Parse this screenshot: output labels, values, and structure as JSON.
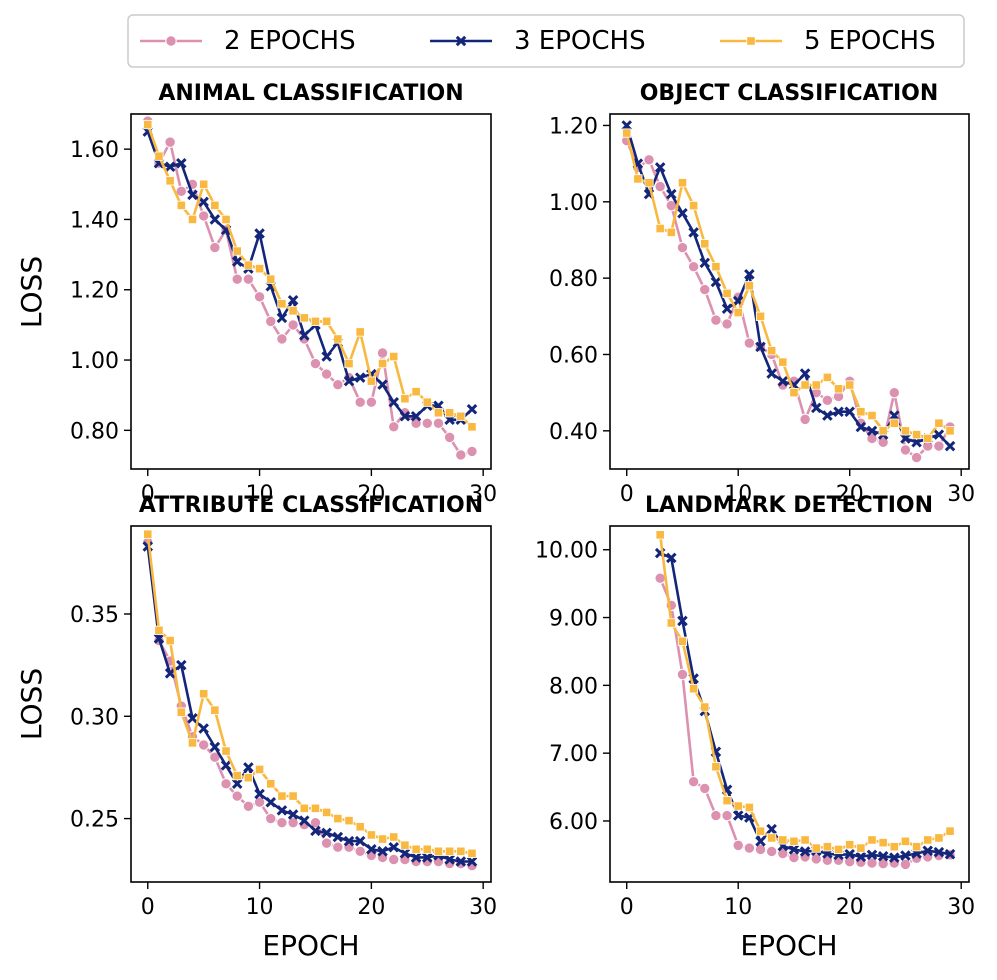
{
  "legend": {
    "entries": [
      {
        "label": "2 EPOCHS",
        "color": "#dc91b0",
        "marker": "circle"
      },
      {
        "label": "3 EPOCHS",
        "color": "#13267a",
        "marker": "x"
      },
      {
        "label": "5 EPOCHS",
        "color": "#f9b941",
        "marker": "square"
      }
    ]
  },
  "shared": {
    "xlabel": "EPOCH",
    "ylabel": "LOSS",
    "x_ticks": [
      0,
      10,
      20,
      30
    ],
    "xlim": [
      -1.5,
      30.7
    ]
  },
  "chart_data": [
    {
      "type": "line",
      "title": "ANIMAL CLASSIFICATION",
      "ylim": [
        0.69,
        1.7
      ],
      "y_ticks": [
        0.8,
        1.0,
        1.2,
        1.4,
        1.6
      ],
      "y_tick_labels": [
        "0.80",
        "1.00",
        "1.20",
        "1.40",
        "1.60"
      ],
      "series": [
        {
          "name": "2 EPOCHS",
          "x": [
            0,
            1,
            2,
            3,
            4,
            5,
            6,
            7,
            8,
            9,
            10,
            11,
            12,
            13,
            14,
            15,
            16,
            17,
            18,
            19,
            20,
            21,
            22,
            23,
            24,
            25,
            26,
            27,
            28,
            29
          ],
          "values": [
            1.68,
            1.56,
            1.62,
            1.48,
            1.5,
            1.41,
            1.32,
            1.37,
            1.23,
            1.23,
            1.18,
            1.11,
            1.06,
            1.1,
            1.06,
            0.99,
            0.96,
            0.93,
            0.95,
            0.88,
            0.88,
            1.02,
            0.81,
            0.85,
            0.82,
            0.82,
            0.82,
            0.78,
            0.73,
            0.74
          ]
        },
        {
          "name": "3 EPOCHS",
          "x": [
            0,
            1,
            2,
            3,
            4,
            5,
            6,
            7,
            8,
            9,
            10,
            11,
            12,
            13,
            14,
            15,
            16,
            17,
            18,
            19,
            20,
            21,
            22,
            23,
            24,
            25,
            26,
            27,
            28,
            29
          ],
          "values": [
            1.65,
            1.56,
            1.55,
            1.56,
            1.47,
            1.45,
            1.4,
            1.37,
            1.28,
            1.26,
            1.36,
            1.21,
            1.12,
            1.17,
            1.07,
            1.1,
            1.01,
            1.05,
            0.94,
            0.95,
            0.96,
            0.93,
            0.88,
            0.84,
            0.84,
            0.87,
            0.87,
            0.83,
            0.83,
            0.86
          ]
        },
        {
          "name": "5 EPOCHS",
          "x": [
            0,
            1,
            2,
            3,
            4,
            5,
            6,
            7,
            8,
            9,
            10,
            11,
            12,
            13,
            14,
            15,
            16,
            17,
            18,
            19,
            20,
            21,
            22,
            23,
            24,
            25,
            26,
            27,
            28,
            29
          ],
          "values": [
            1.67,
            1.58,
            1.51,
            1.44,
            1.4,
            1.5,
            1.44,
            1.4,
            1.31,
            1.27,
            1.26,
            1.23,
            1.16,
            1.14,
            1.12,
            1.11,
            1.11,
            1.06,
            0.99,
            1.08,
            0.94,
            0.99,
            1.01,
            0.89,
            0.91,
            0.88,
            0.85,
            0.85,
            0.84,
            0.81
          ]
        }
      ]
    },
    {
      "type": "line",
      "title": "OBJECT CLASSIFICATION",
      "ylim": [
        0.3,
        1.23
      ],
      "y_ticks": [
        0.4,
        0.6,
        0.8,
        1.0,
        1.2
      ],
      "y_tick_labels": [
        "0.40",
        "0.60",
        "0.80",
        "1.00",
        "1.20"
      ],
      "series": [
        {
          "name": "2 EPOCHS",
          "x": [
            0,
            1,
            2,
            3,
            4,
            5,
            6,
            7,
            8,
            9,
            10,
            11,
            12,
            13,
            14,
            15,
            16,
            17,
            18,
            19,
            20,
            21,
            22,
            23,
            24,
            25,
            26,
            27,
            28,
            29
          ],
          "values": [
            1.16,
            1.09,
            1.11,
            1.04,
            0.99,
            0.88,
            0.83,
            0.77,
            0.69,
            0.68,
            0.75,
            0.63,
            0.62,
            0.6,
            0.52,
            0.53,
            0.43,
            0.5,
            0.48,
            0.49,
            0.53,
            0.42,
            0.38,
            0.37,
            0.5,
            0.35,
            0.33,
            0.36,
            0.36,
            0.41
          ]
        },
        {
          "name": "3 EPOCHS",
          "x": [
            0,
            1,
            2,
            3,
            4,
            5,
            6,
            7,
            8,
            9,
            10,
            11,
            12,
            13,
            14,
            15,
            16,
            17,
            18,
            19,
            20,
            21,
            22,
            23,
            24,
            25,
            26,
            27,
            28,
            29
          ],
          "values": [
            1.2,
            1.1,
            1.02,
            1.09,
            1.02,
            0.97,
            0.92,
            0.84,
            0.79,
            0.72,
            0.74,
            0.81,
            0.62,
            0.55,
            0.53,
            0.52,
            0.55,
            0.46,
            0.44,
            0.45,
            0.45,
            0.41,
            0.4,
            0.39,
            0.44,
            0.38,
            0.37,
            0.38,
            0.39,
            0.36
          ]
        },
        {
          "name": "5 EPOCHS",
          "x": [
            0,
            1,
            2,
            3,
            4,
            5,
            6,
            7,
            8,
            9,
            10,
            11,
            12,
            13,
            14,
            15,
            16,
            17,
            18,
            19,
            20,
            21,
            22,
            23,
            24,
            25,
            26,
            27,
            28,
            29
          ],
          "values": [
            1.18,
            1.06,
            1.05,
            0.93,
            0.92,
            1.05,
            0.99,
            0.89,
            0.83,
            0.76,
            0.71,
            0.78,
            0.7,
            0.61,
            0.58,
            0.5,
            0.52,
            0.52,
            0.54,
            0.51,
            0.52,
            0.45,
            0.44,
            0.4,
            0.42,
            0.4,
            0.39,
            0.38,
            0.42,
            0.4
          ]
        }
      ]
    },
    {
      "type": "line",
      "title": "ATTRIBUTE CLASSIFICATION",
      "ylim": [
        0.219,
        0.393
      ],
      "y_ticks": [
        0.25,
        0.3,
        0.35
      ],
      "y_tick_labels": [
        "0.25",
        "0.30",
        "0.35"
      ],
      "series": [
        {
          "name": "2 EPOCHS",
          "x": [
            0,
            1,
            2,
            3,
            4,
            5,
            6,
            7,
            8,
            9,
            10,
            11,
            12,
            13,
            14,
            15,
            16,
            17,
            18,
            19,
            20,
            21,
            22,
            23,
            24,
            25,
            26,
            27,
            28,
            29
          ],
          "values": [
            0.385,
            0.337,
            0.327,
            0.305,
            0.29,
            0.286,
            0.28,
            0.267,
            0.261,
            0.256,
            0.258,
            0.25,
            0.248,
            0.248,
            0.247,
            0.248,
            0.238,
            0.236,
            0.236,
            0.234,
            0.232,
            0.231,
            0.23,
            0.23,
            0.229,
            0.229,
            0.229,
            0.228,
            0.228,
            0.227
          ]
        },
        {
          "name": "3 EPOCHS",
          "x": [
            0,
            1,
            2,
            3,
            4,
            5,
            6,
            7,
            8,
            9,
            10,
            11,
            12,
            13,
            14,
            15,
            16,
            17,
            18,
            19,
            20,
            21,
            22,
            23,
            24,
            25,
            26,
            27,
            28,
            29
          ],
          "values": [
            0.383,
            0.338,
            0.321,
            0.325,
            0.299,
            0.294,
            0.285,
            0.276,
            0.267,
            0.275,
            0.262,
            0.258,
            0.254,
            0.252,
            0.249,
            0.244,
            0.243,
            0.241,
            0.239,
            0.239,
            0.235,
            0.234,
            0.236,
            0.233,
            0.231,
            0.231,
            0.232,
            0.23,
            0.229,
            0.229
          ]
        },
        {
          "name": "5 EPOCHS",
          "x": [
            0,
            1,
            2,
            3,
            4,
            5,
            6,
            7,
            8,
            9,
            10,
            11,
            12,
            13,
            14,
            15,
            16,
            17,
            18,
            19,
            20,
            21,
            22,
            23,
            24,
            25,
            26,
            27,
            28,
            29
          ],
          "values": [
            0.389,
            0.342,
            0.337,
            0.302,
            0.287,
            0.311,
            0.303,
            0.283,
            0.271,
            0.27,
            0.274,
            0.267,
            0.261,
            0.261,
            0.255,
            0.255,
            0.253,
            0.25,
            0.249,
            0.246,
            0.242,
            0.24,
            0.241,
            0.237,
            0.235,
            0.235,
            0.234,
            0.234,
            0.234,
            0.233
          ]
        }
      ]
    },
    {
      "type": "line",
      "title": "LANDMARK DETECTION",
      "ylim": [
        5.1,
        10.35
      ],
      "y_ticks": [
        6.0,
        7.0,
        8.0,
        9.0,
        10.0
      ],
      "y_tick_labels": [
        "6.00",
        "7.00",
        "8.00",
        "9.00",
        "10.00"
      ],
      "series": [
        {
          "name": "2 EPOCHS",
          "x": [
            3,
            4,
            5,
            6,
            7,
            8,
            9,
            10,
            11,
            12,
            13,
            14,
            15,
            16,
            17,
            18,
            19,
            20,
            21,
            22,
            23,
            24,
            25,
            26,
            27,
            28,
            29
          ],
          "values": [
            9.58,
            9.18,
            8.16,
            6.58,
            6.48,
            6.08,
            6.08,
            5.64,
            5.6,
            5.58,
            5.55,
            5.52,
            5.46,
            5.47,
            5.44,
            5.42,
            5.42,
            5.4,
            5.39,
            5.38,
            5.37,
            5.38,
            5.36,
            5.45,
            5.47,
            5.49,
            5.5
          ]
        },
        {
          "name": "3 EPOCHS",
          "x": [
            3,
            4,
            5,
            6,
            7,
            8,
            9,
            10,
            11,
            12,
            13,
            14,
            15,
            16,
            17,
            18,
            19,
            20,
            21,
            22,
            23,
            24,
            25,
            26,
            27,
            28,
            29
          ],
          "values": [
            9.95,
            9.88,
            8.95,
            8.1,
            7.62,
            7.02,
            6.46,
            6.08,
            6.05,
            5.7,
            5.88,
            5.63,
            5.58,
            5.55,
            5.56,
            5.52,
            5.5,
            5.51,
            5.47,
            5.5,
            5.48,
            5.46,
            5.49,
            5.52,
            5.56,
            5.54,
            5.51
          ]
        },
        {
          "name": "5 EPOCHS",
          "x": [
            3,
            4,
            5,
            6,
            7,
            8,
            9,
            10,
            11,
            12,
            13,
            14,
            15,
            16,
            17,
            18,
            19,
            20,
            21,
            22,
            23,
            24,
            25,
            26,
            27,
            28,
            29
          ],
          "values": [
            10.22,
            8.92,
            8.65,
            7.95,
            7.68,
            6.8,
            6.3,
            6.22,
            6.2,
            5.85,
            5.75,
            5.72,
            5.7,
            5.72,
            5.6,
            5.62,
            5.58,
            5.65,
            5.6,
            5.72,
            5.68,
            5.62,
            5.7,
            5.62,
            5.72,
            5.75,
            5.85
          ]
        }
      ]
    }
  ]
}
